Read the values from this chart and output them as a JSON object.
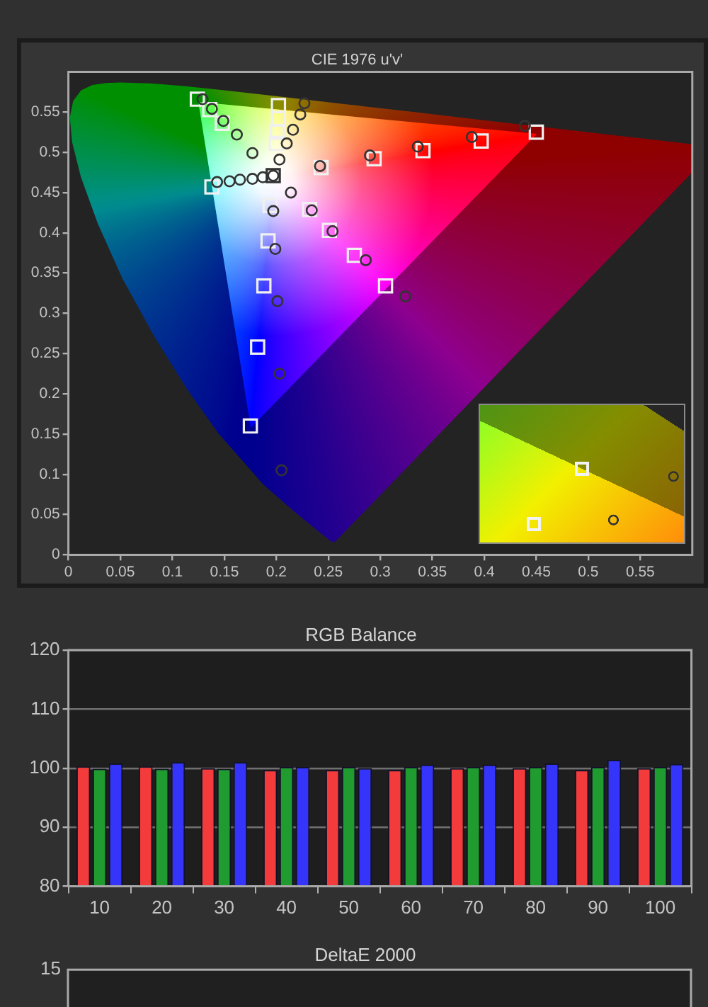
{
  "chart_data": [
    {
      "type": "scatter",
      "title": "CIE 1976 u'v'",
      "xlim": [
        0,
        0.6
      ],
      "ylim": [
        0,
        0.6
      ],
      "xticks": [
        0,
        0.05,
        0.1,
        0.15,
        0.2,
        0.25,
        0.3,
        0.35,
        0.4,
        0.45,
        0.5,
        0.55
      ],
      "yticks": [
        0,
        0.05,
        0.1,
        0.15,
        0.2,
        0.25,
        0.3,
        0.35,
        0.4,
        0.45,
        0.5,
        0.55
      ],
      "series": [
        {
          "colors": [
            "#f0f0f0",
            "#f0f0f0",
            "#f0f0f0",
            "#f0f0f0",
            "#333333",
            "#f0f0f0",
            "#f0f0f0",
            "#f0f0f0",
            "#f0f0f0",
            "#f0f0f0",
            "#f0f0f0",
            "#f0f0f0",
            "#f0f0f0",
            "#f0f0f0",
            "#f0f0f0",
            "#f0f0f0",
            "#f0f0f0",
            "#f0f0f0",
            "#f0f0f0",
            "#f0f0f0",
            "#f0f0f0",
            "#f0f0f0",
            "#f0f0f0"
          ],
          "marker": "square",
          "x": [
            0.124,
            0.136,
            0.148,
            0.138,
            0.197,
            0.202,
            0.202,
            0.201,
            0.2,
            0.45,
            0.397,
            0.341,
            0.294,
            0.243,
            0.232,
            0.251,
            0.275,
            0.305,
            0.194,
            0.192,
            0.188,
            0.182,
            0.175
          ],
          "values": [
            0.566,
            0.553,
            0.536,
            0.457,
            0.471,
            0.558,
            0.542,
            0.525,
            0.511,
            0.525,
            0.514,
            0.502,
            0.492,
            0.481,
            0.429,
            0.403,
            0.372,
            0.334,
            0.434,
            0.39,
            0.334,
            0.258,
            0.16
          ]
        },
        {
          "color": "#333333",
          "marker": "circle",
          "x": [
            0.129,
            0.138,
            0.149,
            0.162,
            0.177,
            0.143,
            0.155,
            0.165,
            0.177,
            0.187,
            0.197,
            0.227,
            0.223,
            0.216,
            0.21,
            0.203,
            0.439,
            0.388,
            0.336,
            0.29,
            0.242,
            0.214,
            0.234,
            0.254,
            0.286,
            0.324,
            0.197,
            0.199,
            0.201,
            0.203,
            0.205
          ],
          "values": [
            0.566,
            0.554,
            0.539,
            0.522,
            0.499,
            0.463,
            0.464,
            0.466,
            0.467,
            0.469,
            0.471,
            0.561,
            0.547,
            0.528,
            0.511,
            0.491,
            0.533,
            0.519,
            0.507,
            0.496,
            0.483,
            0.45,
            0.428,
            0.402,
            0.366,
            0.321,
            0.427,
            0.38,
            0.315,
            0.225,
            0.105
          ]
        }
      ]
    },
    {
      "type": "bar",
      "title": "RGB Balance",
      "categories": [
        "10",
        "20",
        "30",
        "40",
        "50",
        "60",
        "70",
        "80",
        "90",
        "100"
      ],
      "series": [
        {
          "color": "#f33b3b",
          "values": [
            100.3,
            100.3,
            100.0,
            99.7,
            99.7,
            99.7,
            100.0,
            100.0,
            99.7,
            100.0
          ]
        },
        {
          "color": "#1f9b30",
          "values": [
            99.9,
            99.9,
            99.9,
            100.2,
            100.2,
            100.2,
            100.2,
            100.2,
            100.2,
            100.2
          ]
        },
        {
          "color": "#3434fa",
          "values": [
            100.8,
            101.0,
            101.0,
            100.2,
            100.0,
            100.6,
            100.6,
            100.8,
            101.4,
            100.7
          ]
        }
      ],
      "ylim": [
        80,
        120
      ],
      "yticks": [
        80,
        90,
        100,
        110,
        120
      ],
      "grid": "y"
    },
    {
      "type": "other",
      "title": "DeltaE 2000",
      "annotations": [
        "15"
      ]
    }
  ]
}
